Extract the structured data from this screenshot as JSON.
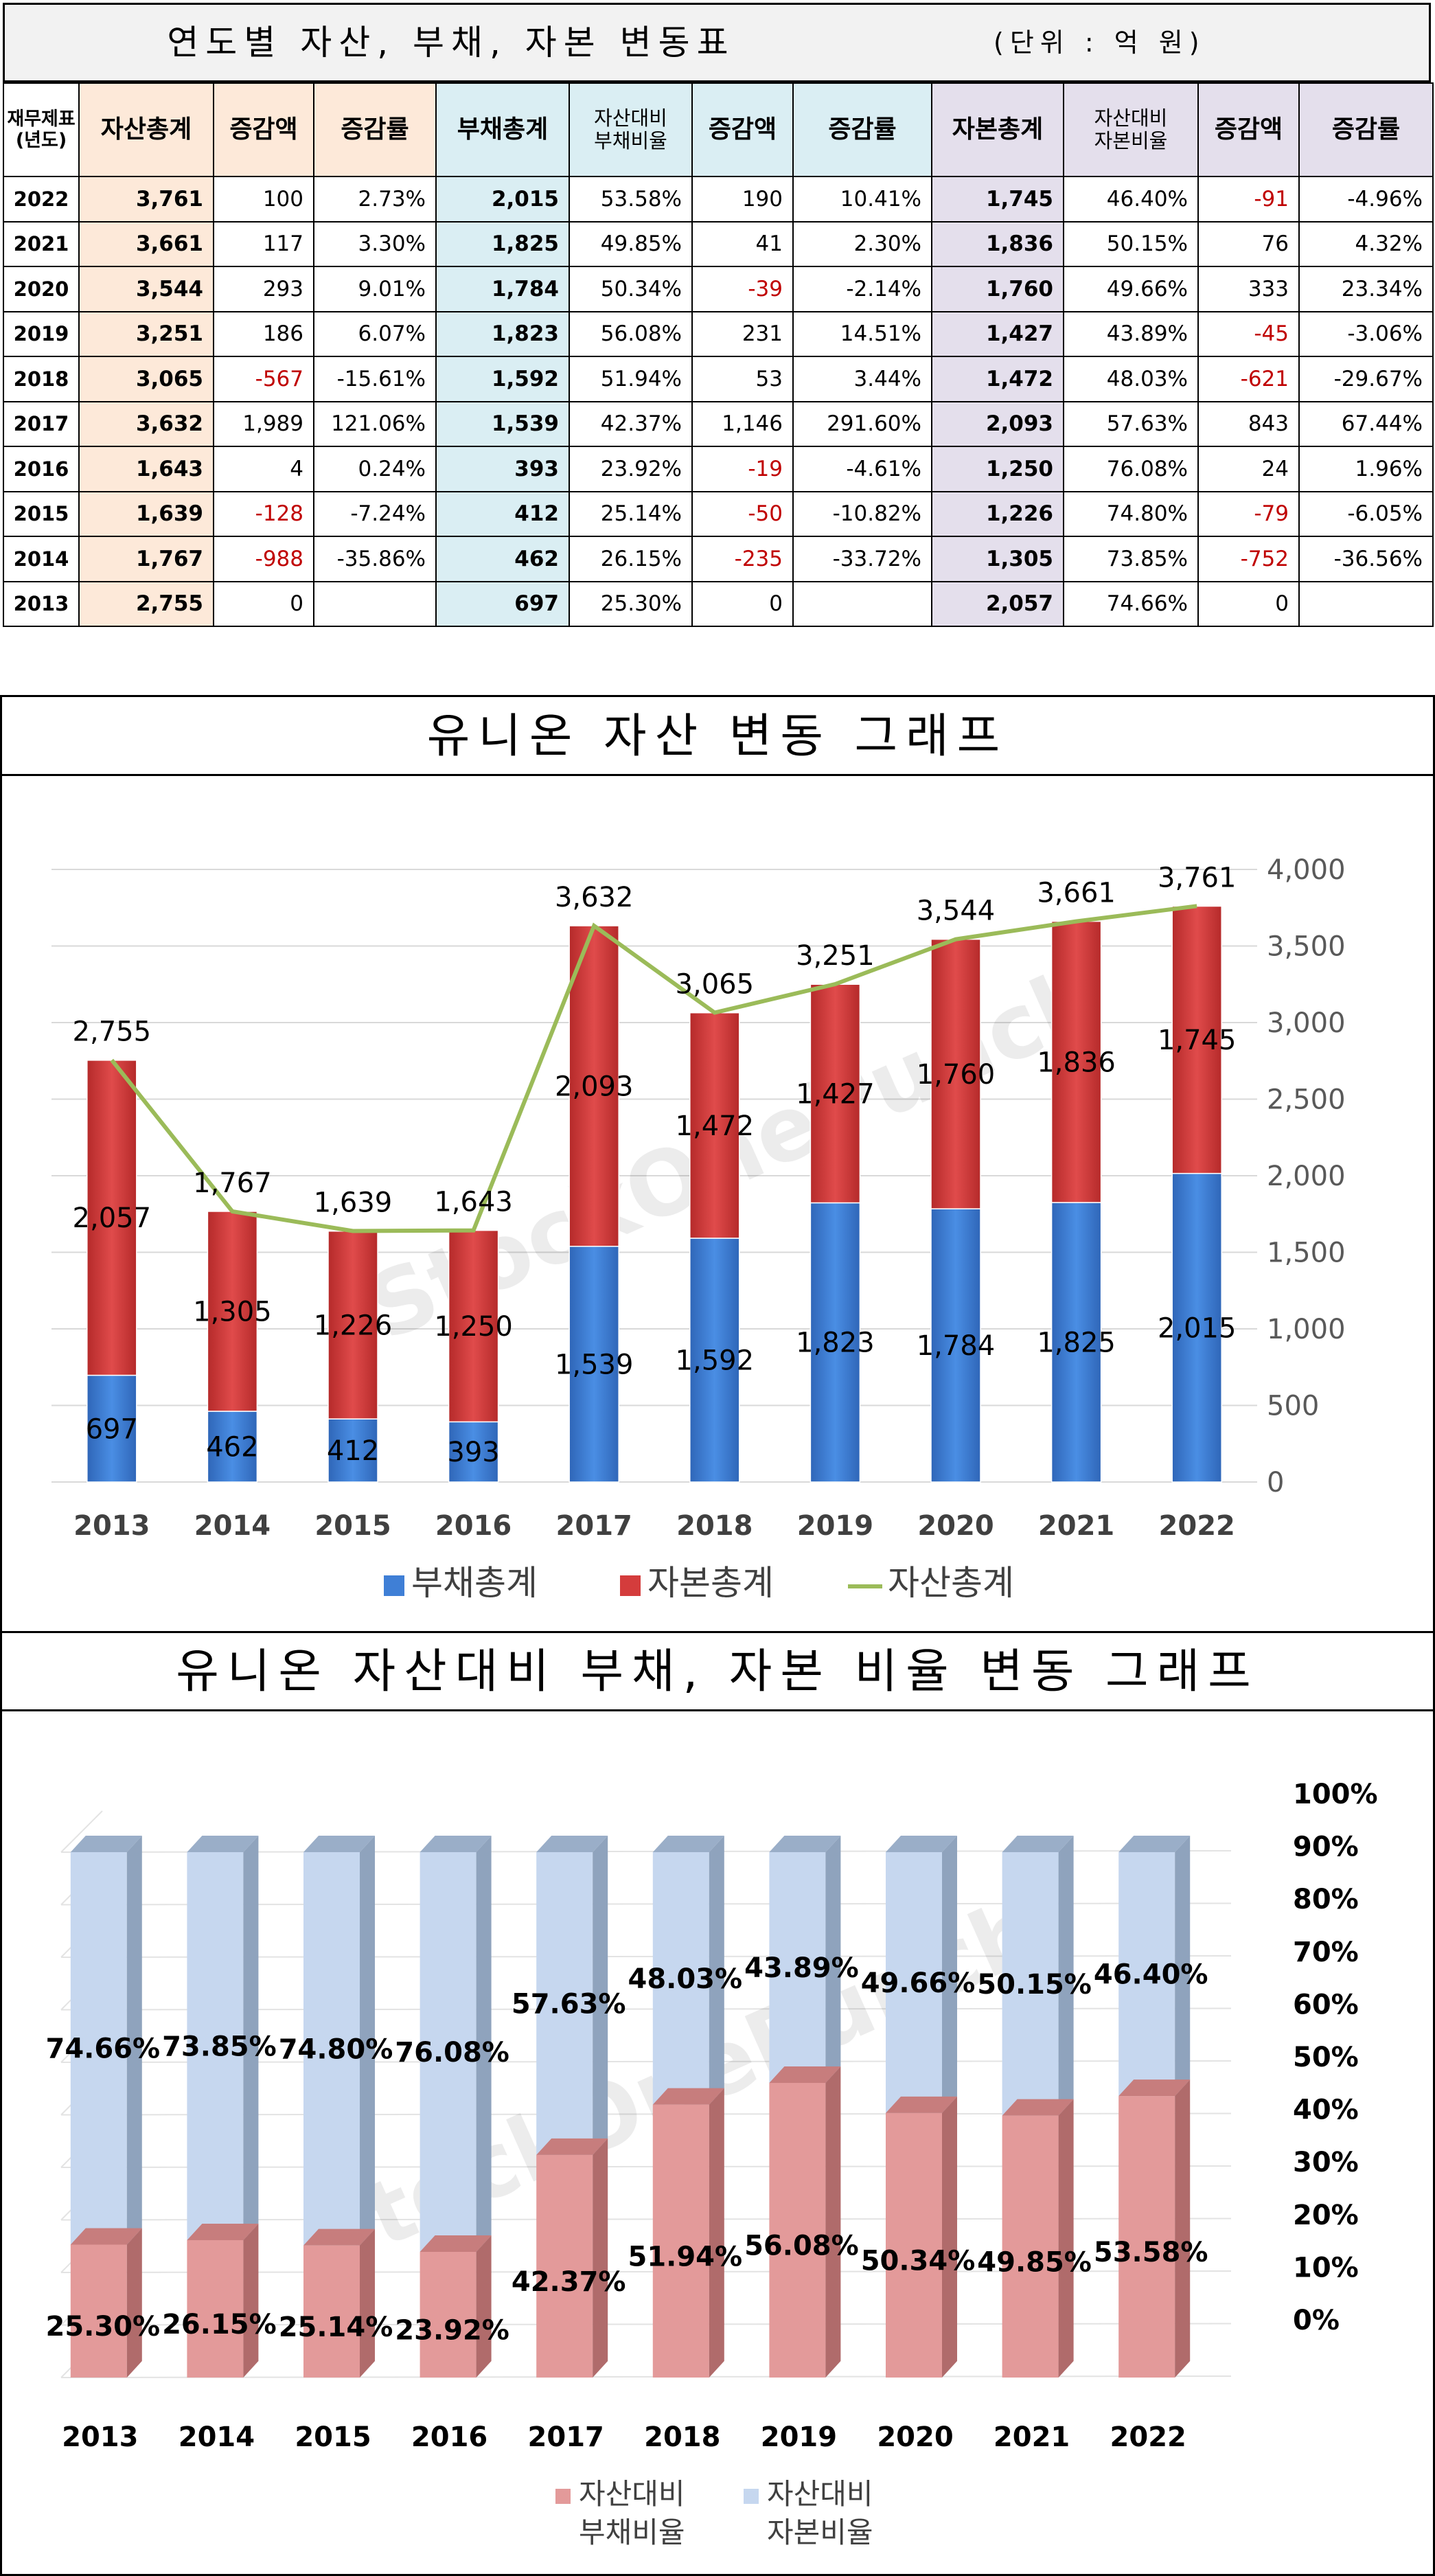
{
  "table": {
    "title": "연도별 자산, 부채, 자본 변동표",
    "unit": "(단위 : 억 원)",
    "headers": {
      "year": "재무제표\n(년도)",
      "asset_total": "자산총계",
      "asset_change": "증감액",
      "asset_rate": "증감률",
      "debt_total": "부채총계",
      "debt_ratio": "자산대비\n부채비율",
      "debt_change": "증감액",
      "debt_rate": "증감률",
      "equity_total": "자본총계",
      "equity_ratio": "자산대비\n자본비율",
      "equity_change": "증감액",
      "equity_rate": "증감률"
    },
    "rows": [
      {
        "year": "2022",
        "asset": "3,761",
        "a_chg": "100",
        "a_rate": "2.73%",
        "debt": "2,015",
        "d_ratio": "53.58%",
        "d_chg": "190",
        "d_rate": "10.41%",
        "eq": "1,745",
        "e_ratio": "46.40%",
        "e_chg": "-91",
        "e_rate": "-4.96%"
      },
      {
        "year": "2021",
        "asset": "3,661",
        "a_chg": "117",
        "a_rate": "3.30%",
        "debt": "1,825",
        "d_ratio": "49.85%",
        "d_chg": "41",
        "d_rate": "2.30%",
        "eq": "1,836",
        "e_ratio": "50.15%",
        "e_chg": "76",
        "e_rate": "4.32%"
      },
      {
        "year": "2020",
        "asset": "3,544",
        "a_chg": "293",
        "a_rate": "9.01%",
        "debt": "1,784",
        "d_ratio": "50.34%",
        "d_chg": "-39",
        "d_rate": "-2.14%",
        "eq": "1,760",
        "e_ratio": "49.66%",
        "e_chg": "333",
        "e_rate": "23.34%"
      },
      {
        "year": "2019",
        "asset": "3,251",
        "a_chg": "186",
        "a_rate": "6.07%",
        "debt": "1,823",
        "d_ratio": "56.08%",
        "d_chg": "231",
        "d_rate": "14.51%",
        "eq": "1,427",
        "e_ratio": "43.89%",
        "e_chg": "-45",
        "e_rate": "-3.06%"
      },
      {
        "year": "2018",
        "asset": "3,065",
        "a_chg": "-567",
        "a_rate": "-15.61%",
        "debt": "1,592",
        "d_ratio": "51.94%",
        "d_chg": "53",
        "d_rate": "3.44%",
        "eq": "1,472",
        "e_ratio": "48.03%",
        "e_chg": "-621",
        "e_rate": "-29.67%"
      },
      {
        "year": "2017",
        "asset": "3,632",
        "a_chg": "1,989",
        "a_rate": "121.06%",
        "debt": "1,539",
        "d_ratio": "42.37%",
        "d_chg": "1,146",
        "d_rate": "291.60%",
        "eq": "2,093",
        "e_ratio": "57.63%",
        "e_chg": "843",
        "e_rate": "67.44%"
      },
      {
        "year": "2016",
        "asset": "1,643",
        "a_chg": "4",
        "a_rate": "0.24%",
        "debt": "393",
        "d_ratio": "23.92%",
        "d_chg": "-19",
        "d_rate": "-4.61%",
        "eq": "1,250",
        "e_ratio": "76.08%",
        "e_chg": "24",
        "e_rate": "1.96%"
      },
      {
        "year": "2015",
        "asset": "1,639",
        "a_chg": "-128",
        "a_rate": "-7.24%",
        "debt": "412",
        "d_ratio": "25.14%",
        "d_chg": "-50",
        "d_rate": "-10.82%",
        "eq": "1,226",
        "e_ratio": "74.80%",
        "e_chg": "-79",
        "e_rate": "-6.05%"
      },
      {
        "year": "2014",
        "asset": "1,767",
        "a_chg": "-988",
        "a_rate": "-35.86%",
        "debt": "462",
        "d_ratio": "26.15%",
        "d_chg": "-235",
        "d_rate": "-33.72%",
        "eq": "1,305",
        "e_ratio": "73.85%",
        "e_chg": "-752",
        "e_rate": "-36.56%"
      },
      {
        "year": "2013",
        "asset": "2,755",
        "a_chg": "0",
        "a_rate": "",
        "debt": "697",
        "d_ratio": "25.30%",
        "d_chg": "0",
        "d_rate": "",
        "eq": "2,057",
        "e_ratio": "74.66%",
        "e_chg": "0",
        "e_rate": ""
      }
    ]
  },
  "watermark": "StockOnePunch",
  "colors": {
    "asset_bg": "#fde9d9",
    "debt_bg": "#daeef3",
    "equity_bg": "#e4dfec",
    "negative": "#c00000",
    "debt_bar": "#3f7fd6",
    "equity_bar": "#d43c3c",
    "asset_line": "#9bbb59",
    "ratio_debt": "#e39a9a",
    "ratio_equity": "#c6d7ef"
  },
  "chart_data": [
    {
      "type": "bar",
      "title": "유니온 자산 변동 그래프",
      "categories": [
        "2013",
        "2014",
        "2015",
        "2016",
        "2017",
        "2018",
        "2019",
        "2020",
        "2021",
        "2022"
      ],
      "series": [
        {
          "name": "부채총계",
          "kind": "stacked-bar",
          "values": [
            697,
            462,
            412,
            393,
            1539,
            1592,
            1823,
            1784,
            1825,
            2015
          ]
        },
        {
          "name": "자본총계",
          "kind": "stacked-bar",
          "values": [
            2057,
            1305,
            1226,
            1250,
            2093,
            1472,
            1427,
            1760,
            1836,
            1745
          ]
        },
        {
          "name": "자산총계",
          "kind": "line",
          "values": [
            2755,
            1767,
            1639,
            1643,
            3632,
            3065,
            3251,
            3544,
            3661,
            3761
          ]
        }
      ],
      "ylim": [
        0,
        4000
      ],
      "yticks": [
        0,
        500,
        1000,
        1500,
        2000,
        2500,
        3000,
        3500,
        4000
      ],
      "ytick_labels": [
        "0",
        "500",
        "1,000",
        "1,500",
        "2,000",
        "2,500",
        "3,000",
        "3,500",
        "4,000"
      ],
      "axis_side": "right",
      "legend_position": "bottom"
    },
    {
      "type": "bar",
      "title": "유니온 자산대비 부채, 자본 비율 변동 그래프",
      "categories": [
        "2013",
        "2014",
        "2015",
        "2016",
        "2017",
        "2018",
        "2019",
        "2020",
        "2021",
        "2022"
      ],
      "series": [
        {
          "name": "자산대비\n부채비율",
          "values": [
            25.3,
            26.15,
            25.14,
            23.92,
            42.37,
            51.94,
            56.08,
            50.34,
            49.85,
            53.58
          ]
        },
        {
          "name": "자산대비\n자본비율",
          "values": [
            74.66,
            73.85,
            74.8,
            76.08,
            57.63,
            48.03,
            43.89,
            49.66,
            50.15,
            46.4
          ]
        }
      ],
      "value_labels_debt": [
        "25.30%",
        "26.15%",
        "25.14%",
        "23.92%",
        "42.37%",
        "51.94%",
        "56.08%",
        "50.34%",
        "49.85%",
        "53.58%"
      ],
      "value_labels_equity": [
        "74.66%",
        "73.85%",
        "74.80%",
        "76.08%",
        "57.63%",
        "48.03%",
        "43.89%",
        "49.66%",
        "50.15%",
        "46.40%"
      ],
      "ylim": [
        0,
        100
      ],
      "yticks": [
        0,
        10,
        20,
        30,
        40,
        50,
        60,
        70,
        80,
        90,
        100
      ],
      "ytick_labels": [
        "0%",
        "10%",
        "20%",
        "30%",
        "40%",
        "50%",
        "60%",
        "70%",
        "80%",
        "90%",
        "100%"
      ],
      "axis_side": "right",
      "legend_position": "bottom",
      "style": "3d-stacked-percent"
    }
  ]
}
